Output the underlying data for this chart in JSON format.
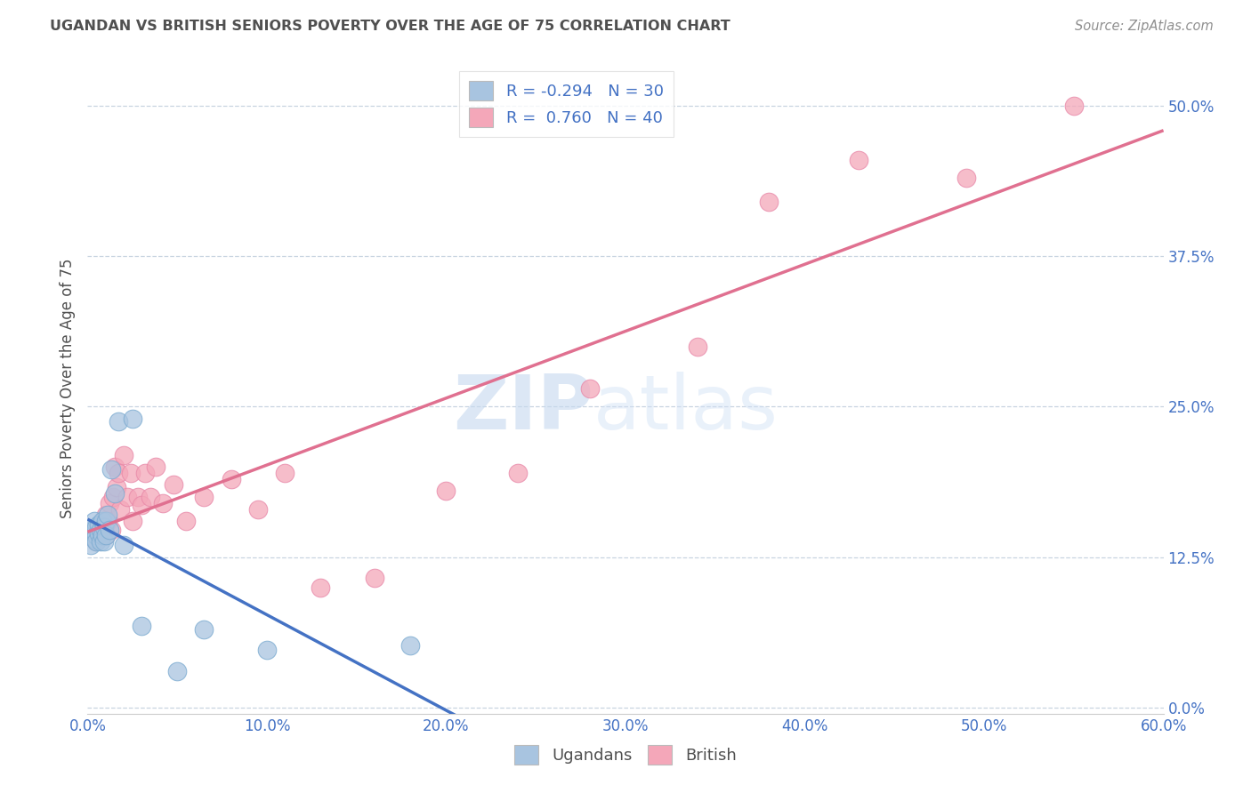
{
  "title": "UGANDAN VS BRITISH SENIORS POVERTY OVER THE AGE OF 75 CORRELATION CHART",
  "source": "Source: ZipAtlas.com",
  "ylabel": "Seniors Poverty Over the Age of 75",
  "watermark_zip": "ZIP",
  "watermark_atlas": "atlas",
  "ugandan_R": -0.294,
  "ugandan_N": 30,
  "british_R": 0.76,
  "british_N": 40,
  "ugandan_color": "#a8c4e0",
  "ugandan_edge_color": "#7aaad0",
  "ugandan_line_color": "#4472c4",
  "british_color": "#f4a7b9",
  "british_edge_color": "#e888a8",
  "british_line_color": "#e07090",
  "background_color": "#ffffff",
  "grid_color": "#c8d4e0",
  "title_color": "#505050",
  "axis_label_color": "#4472c4",
  "source_color": "#909090",
  "xlim": [
    0.0,
    0.6
  ],
  "ylim": [
    -0.005,
    0.535
  ],
  "xticks": [
    0.0,
    0.1,
    0.2,
    0.3,
    0.4,
    0.5,
    0.6
  ],
  "yticks_right": [
    0.0,
    0.125,
    0.25,
    0.375,
    0.5
  ],
  "ugandan_x": [
    0.002,
    0.002,
    0.003,
    0.004,
    0.004,
    0.005,
    0.005,
    0.005,
    0.006,
    0.006,
    0.007,
    0.007,
    0.008,
    0.008,
    0.009,
    0.009,
    0.01,
    0.01,
    0.011,
    0.012,
    0.013,
    0.015,
    0.017,
    0.02,
    0.025,
    0.03,
    0.05,
    0.065,
    0.1,
    0.18
  ],
  "ugandan_y": [
    0.145,
    0.135,
    0.148,
    0.155,
    0.14,
    0.15,
    0.143,
    0.138,
    0.152,
    0.145,
    0.148,
    0.138,
    0.155,
    0.143,
    0.15,
    0.138,
    0.155,
    0.143,
    0.16,
    0.148,
    0.198,
    0.178,
    0.238,
    0.135,
    0.24,
    0.068,
    0.03,
    0.065,
    0.048,
    0.052
  ],
  "british_x": [
    0.005,
    0.007,
    0.008,
    0.009,
    0.01,
    0.01,
    0.011,
    0.012,
    0.013,
    0.014,
    0.015,
    0.016,
    0.017,
    0.018,
    0.02,
    0.022,
    0.024,
    0.025,
    0.028,
    0.03,
    0.032,
    0.035,
    0.038,
    0.042,
    0.048,
    0.055,
    0.065,
    0.08,
    0.095,
    0.11,
    0.13,
    0.16,
    0.2,
    0.24,
    0.28,
    0.34,
    0.38,
    0.43,
    0.49,
    0.55
  ],
  "british_y": [
    0.138,
    0.143,
    0.148,
    0.155,
    0.143,
    0.16,
    0.155,
    0.17,
    0.148,
    0.175,
    0.2,
    0.183,
    0.195,
    0.165,
    0.21,
    0.175,
    0.195,
    0.155,
    0.175,
    0.168,
    0.195,
    0.175,
    0.2,
    0.17,
    0.185,
    0.155,
    0.175,
    0.19,
    0.165,
    0.195,
    0.1,
    0.108,
    0.18,
    0.195,
    0.265,
    0.3,
    0.42,
    0.455,
    0.44,
    0.5
  ],
  "ug_line_x_start": 0.0,
  "ug_line_x_end": 0.32,
  "br_line_x_start": 0.0,
  "br_line_x_end": 0.6
}
